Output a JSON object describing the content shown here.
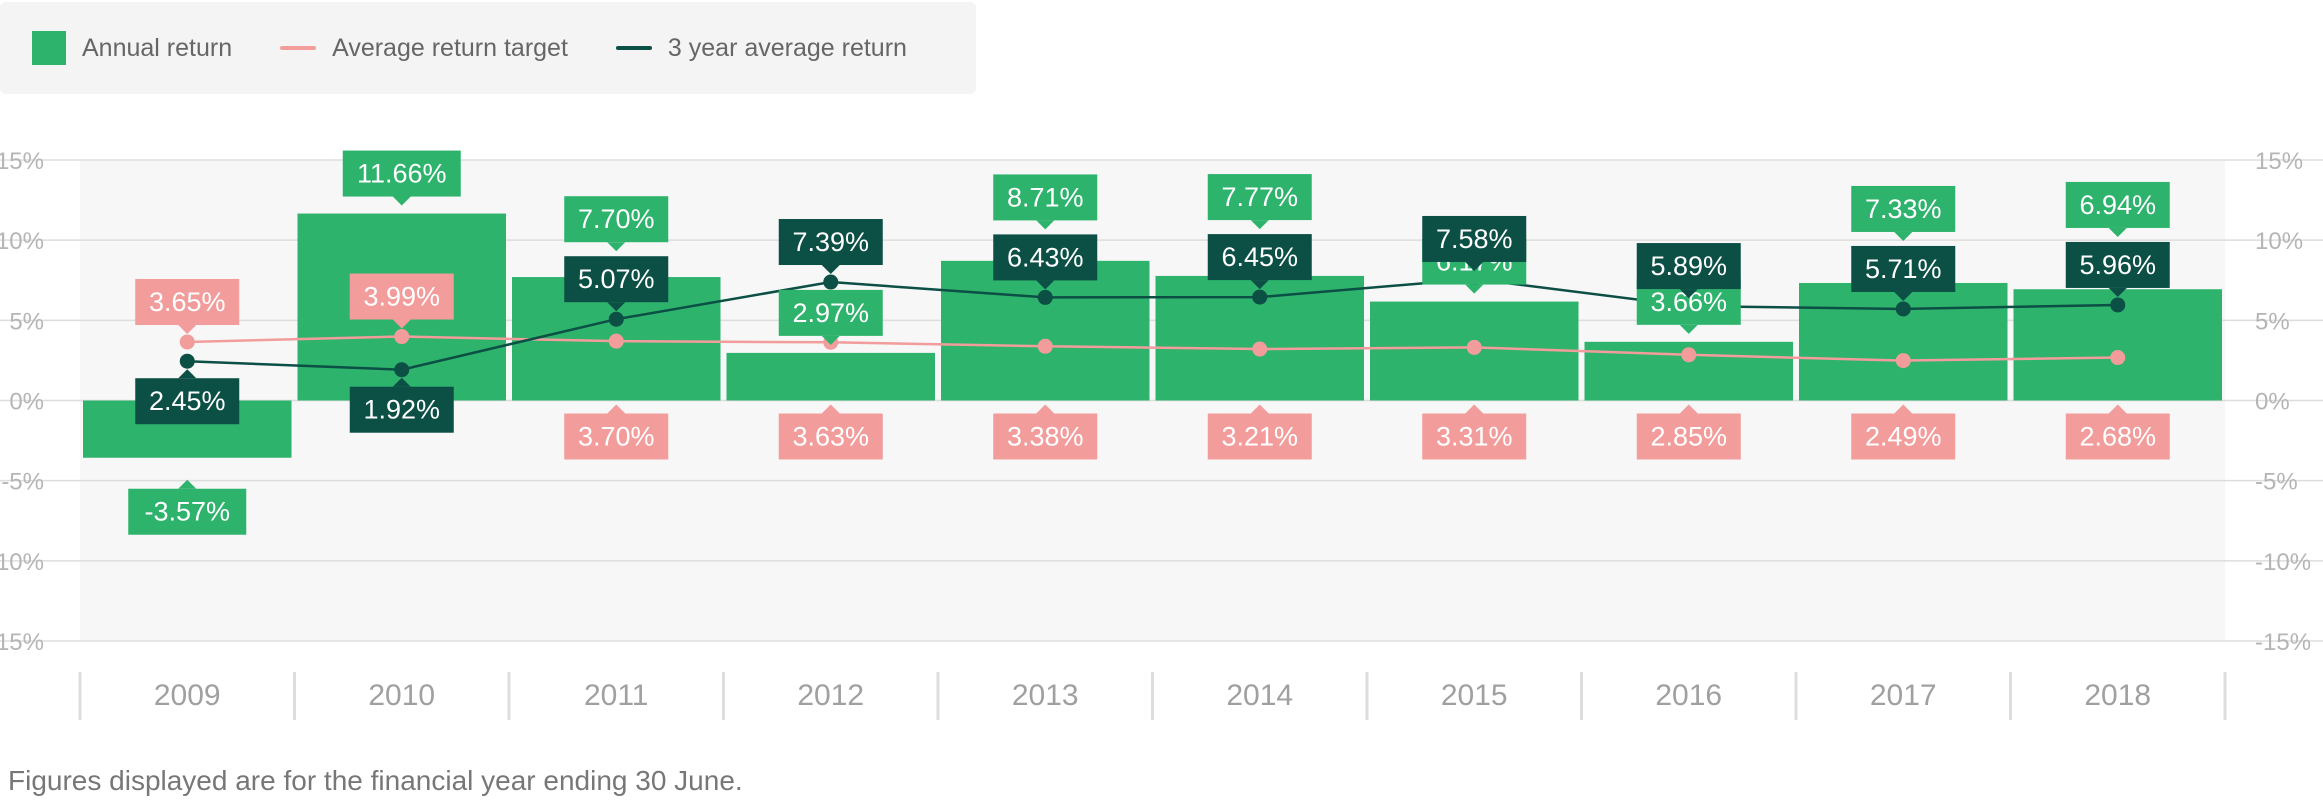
{
  "colors": {
    "bar": "#2eb36d",
    "target": "#f29c9c",
    "avg3": "#0b4f45",
    "grid": "#dddddd",
    "plotbg": "#f7f7f7",
    "axis_text": "#b5b5b5",
    "year_text": "#a0a0a0"
  },
  "legend": [
    {
      "label": "Annual return",
      "kind": "box",
      "color": "#2eb36d"
    },
    {
      "label": "Average return target",
      "kind": "line",
      "color": "#f29c9c"
    },
    {
      "label": "3 year average return",
      "kind": "line",
      "color": "#0b4f45"
    }
  ],
  "footnote": "Figures displayed are for the financial year ending 30 June.",
  "chart_data": {
    "type": "bar",
    "categories": [
      "2009",
      "2010",
      "2011",
      "2012",
      "2013",
      "2014",
      "2015",
      "2016",
      "2017",
      "2018"
    ],
    "series": [
      {
        "name": "Annual return",
        "type": "bar",
        "values": [
          -3.57,
          11.66,
          7.7,
          2.97,
          8.71,
          7.77,
          6.17,
          3.66,
          7.33,
          6.94
        ],
        "labels": [
          "-3.57%",
          "11.66%",
          "7.70%",
          "2.97%",
          "8.71%",
          "7.77%",
          "6.17%",
          "3.66%",
          "7.33%",
          "6.94%"
        ]
      },
      {
        "name": "Average return target",
        "type": "line",
        "values": [
          3.65,
          3.99,
          3.7,
          3.63,
          3.38,
          3.21,
          3.31,
          2.85,
          2.49,
          2.68
        ],
        "labels": [
          "3.65%",
          "3.99%",
          "3.70%",
          "3.63%",
          "3.38%",
          "3.21%",
          "3.31%",
          "2.85%",
          "2.49%",
          "2.68%"
        ]
      },
      {
        "name": "3 year average return",
        "type": "line",
        "values": [
          2.45,
          1.92,
          5.07,
          7.39,
          6.43,
          6.45,
          7.58,
          5.89,
          5.71,
          5.96
        ],
        "labels": [
          "2.45%",
          "1.92%",
          "5.07%",
          "7.39%",
          "6.43%",
          "6.45%",
          "7.58%",
          "5.89%",
          "5.71%",
          "5.96%"
        ]
      }
    ],
    "y_ticks": [
      15,
      10,
      5,
      0,
      -5,
      -10,
      -15
    ],
    "y_tick_labels": [
      "15%",
      "10%",
      "5%",
      "0%",
      "-5%",
      "-10%",
      "-15%"
    ],
    "ylim": [
      -15,
      15
    ],
    "grid": true,
    "legend_position": "top-left"
  }
}
